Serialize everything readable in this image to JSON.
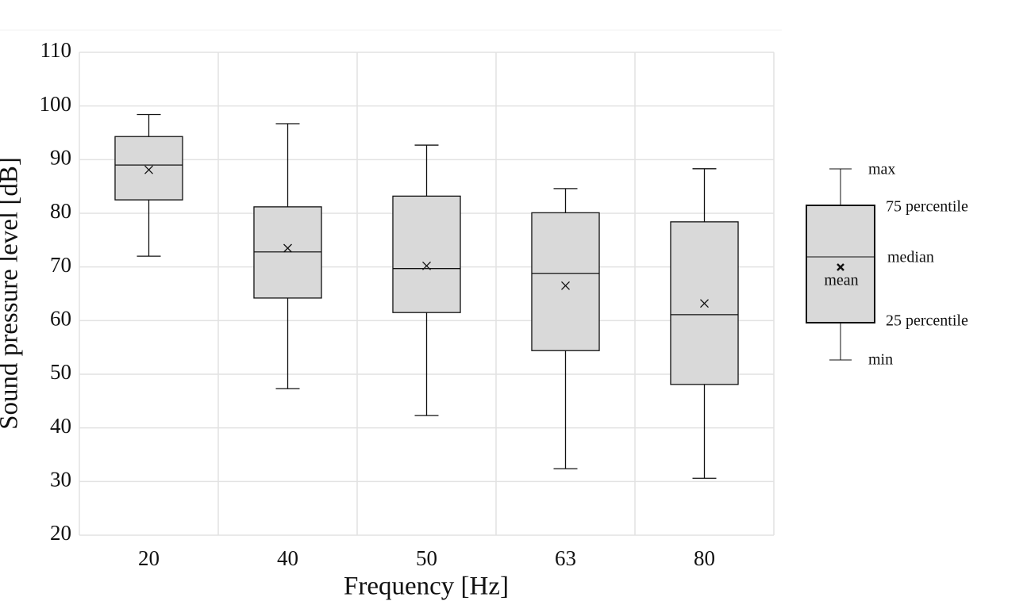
{
  "chart_data": {
    "type": "box",
    "x_label": "Frequency [Hz]",
    "y_label": "Sound pressure level [dB]",
    "categories": [
      "20",
      "40",
      "50",
      "63",
      "80"
    ],
    "boxes": [
      {
        "min": 72,
        "q1": 82.5,
        "median": 89,
        "q3": 94.3,
        "max": 98.4,
        "mean": 88.1
      },
      {
        "min": 47.3,
        "q1": 64.2,
        "median": 72.8,
        "q3": 81.2,
        "max": 96.7,
        "mean": 73.5
      },
      {
        "min": 42.3,
        "q1": 61.5,
        "median": 69.7,
        "q3": 83.2,
        "max": 92.7,
        "mean": 70.2
      },
      {
        "min": 32.4,
        "q1": 54.4,
        "median": 68.8,
        "q3": 80.1,
        "max": 84.6,
        "mean": 66.5
      },
      {
        "min": 30.6,
        "q1": 48.1,
        "median": 61.1,
        "q3": 78.4,
        "max": 88.3,
        "mean": 63.2
      }
    ],
    "box_color": "#d9d9d9",
    "ylim": [
      20,
      110
    ],
    "yticks": [
      20,
      30,
      40,
      50,
      60,
      70,
      80,
      90,
      100,
      110
    ],
    "grid": true,
    "legend": {
      "max": "max",
      "q3": "75 percentile",
      "median": "median",
      "mean": "mean",
      "q1": "25 percentile",
      "min": "min"
    }
  }
}
